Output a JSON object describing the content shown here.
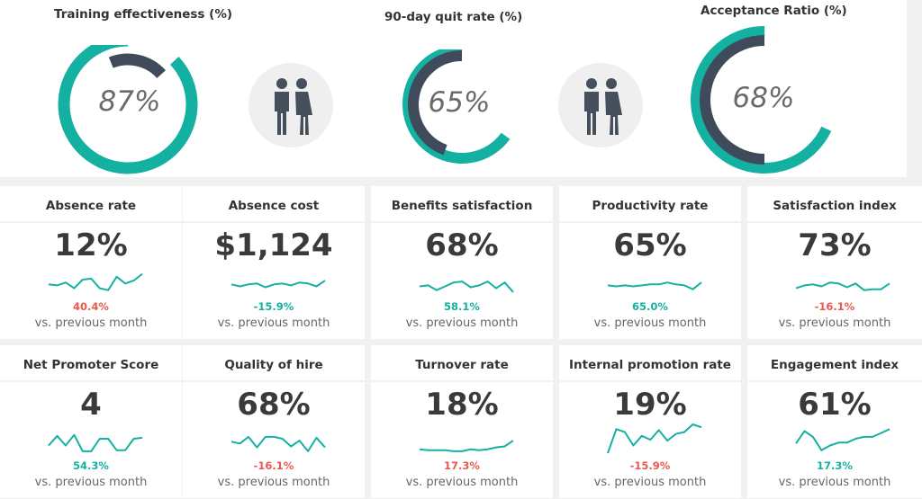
{
  "colors": {
    "teal": "#14b1a3",
    "dark": "#3f4b5b",
    "red": "#e8584e",
    "person": "#45505c"
  },
  "icons": [
    "couple-icon",
    "couple-icon"
  ],
  "gauges": [
    {
      "title": "Training effectiveness (%)",
      "value": 87,
      "label": "87%"
    },
    {
      "title": "90-day quit rate (%)",
      "value": 65,
      "label": "65%"
    },
    {
      "title": "Acceptance Ratio (%)",
      "value": 68,
      "label": "68%"
    }
  ],
  "chart_data": [
    {
      "type": "sparkline",
      "title": "Absence rate",
      "value": "12%",
      "change": "40.4%",
      "change_direction": "up",
      "subtitle": "vs. previous month",
      "values": [
        20,
        21,
        18,
        24,
        15,
        14,
        24,
        26,
        12,
        19,
        16,
        9
      ]
    },
    {
      "type": "sparkline",
      "title": "Absence cost",
      "value": "$1,124",
      "change": "-15.9%",
      "change_direction": "down",
      "subtitle": "vs. previous month",
      "values": [
        20,
        22,
        20,
        19,
        23,
        20,
        19,
        21,
        18,
        19,
        22,
        16
      ]
    },
    {
      "type": "sparkline",
      "title": "Benefits satisfaction",
      "value": "68%",
      "change": "58.1%",
      "change_direction": "down",
      "subtitle": "vs. previous month",
      "values": [
        22,
        21,
        26,
        22,
        18,
        17,
        23,
        21,
        17,
        24,
        18,
        28
      ]
    },
    {
      "type": "sparkline",
      "title": "Productivity rate",
      "value": "65%",
      "change": "65.0%",
      "change_direction": "down",
      "subtitle": "vs. previous month",
      "values": [
        21,
        22,
        21,
        22,
        21,
        20,
        20,
        18,
        20,
        21,
        25,
        18
      ]
    },
    {
      "type": "sparkline",
      "title": "Satisfaction index",
      "value": "73%",
      "change": "-16.1%",
      "change_direction": "up",
      "subtitle": "vs. previous month",
      "values": [
        24,
        21,
        20,
        22,
        18,
        19,
        23,
        19,
        26,
        25,
        25,
        19
      ]
    },
    {
      "type": "sparkline",
      "title": "Net Promoter Score",
      "value": "4",
      "change": "54.3%",
      "change_direction": "down",
      "subtitle": "vs. previous month",
      "values": [
        22,
        12,
        22,
        11,
        28,
        28,
        15,
        15,
        27,
        27,
        15,
        14
      ]
    },
    {
      "type": "sparkline",
      "title": "Quality of hire",
      "value": "68%",
      "change": "-16.1%",
      "change_direction": "up",
      "subtitle": "vs. previous month",
      "values": [
        18,
        20,
        13,
        24,
        13,
        13,
        15,
        23,
        17,
        28,
        14,
        24
      ]
    },
    {
      "type": "sparkline",
      "title": "Turnover rate",
      "value": "18%",
      "change": "17.3%",
      "change_direction": "up",
      "subtitle": "vs. previous month",
      "values": [
        26,
        27,
        27,
        27,
        28,
        28,
        26,
        27,
        26,
        24,
        23,
        17
      ]
    },
    {
      "type": "sparkline",
      "title": "Internal promotion rate",
      "value": "19%",
      "change": "-15.9%",
      "change_direction": "up",
      "subtitle": "vs. previous month",
      "values": [
        30,
        5,
        8,
        22,
        12,
        16,
        6,
        17,
        10,
        8,
        0,
        3
      ]
    },
    {
      "type": "sparkline",
      "title": "Engagement index",
      "value": "61%",
      "change": "17.3%",
      "change_direction": "down",
      "subtitle": "vs. previous month",
      "values": [
        20,
        7,
        13,
        27,
        22,
        19,
        19,
        15,
        13,
        13,
        9,
        5
      ]
    }
  ]
}
